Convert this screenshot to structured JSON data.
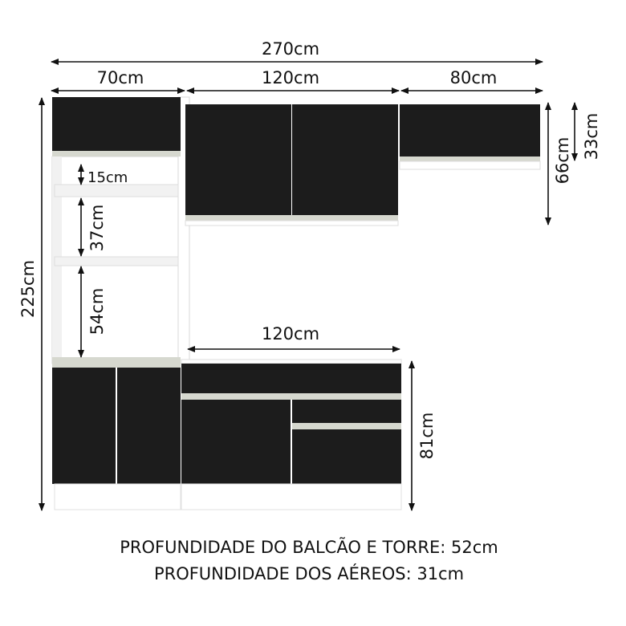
{
  "dimensions": {
    "total_width": "270cm",
    "tower_width": "70cm",
    "upper_middle_width": "120cm",
    "upper_right_width": "80cm",
    "total_height": "225cm",
    "upper_right_offset": "66cm",
    "upper_right_height": "33cm",
    "counter_width": "120cm",
    "counter_height": "81cm",
    "shelf_top_gap": "15cm",
    "shelf_middle_gap": "37cm",
    "shelf_bottom_gap": "54cm"
  },
  "notes": {
    "base_depth": "PROFUNDIDADE DO BALCÃO E TORRE: 52cm",
    "upper_depth": "PROFUNDIDADE DOS AÉREOS: 31cm"
  },
  "colors": {
    "door": "#1c1c1c",
    "carcass": "#ffffff",
    "trim": "#d6d8cf"
  }
}
